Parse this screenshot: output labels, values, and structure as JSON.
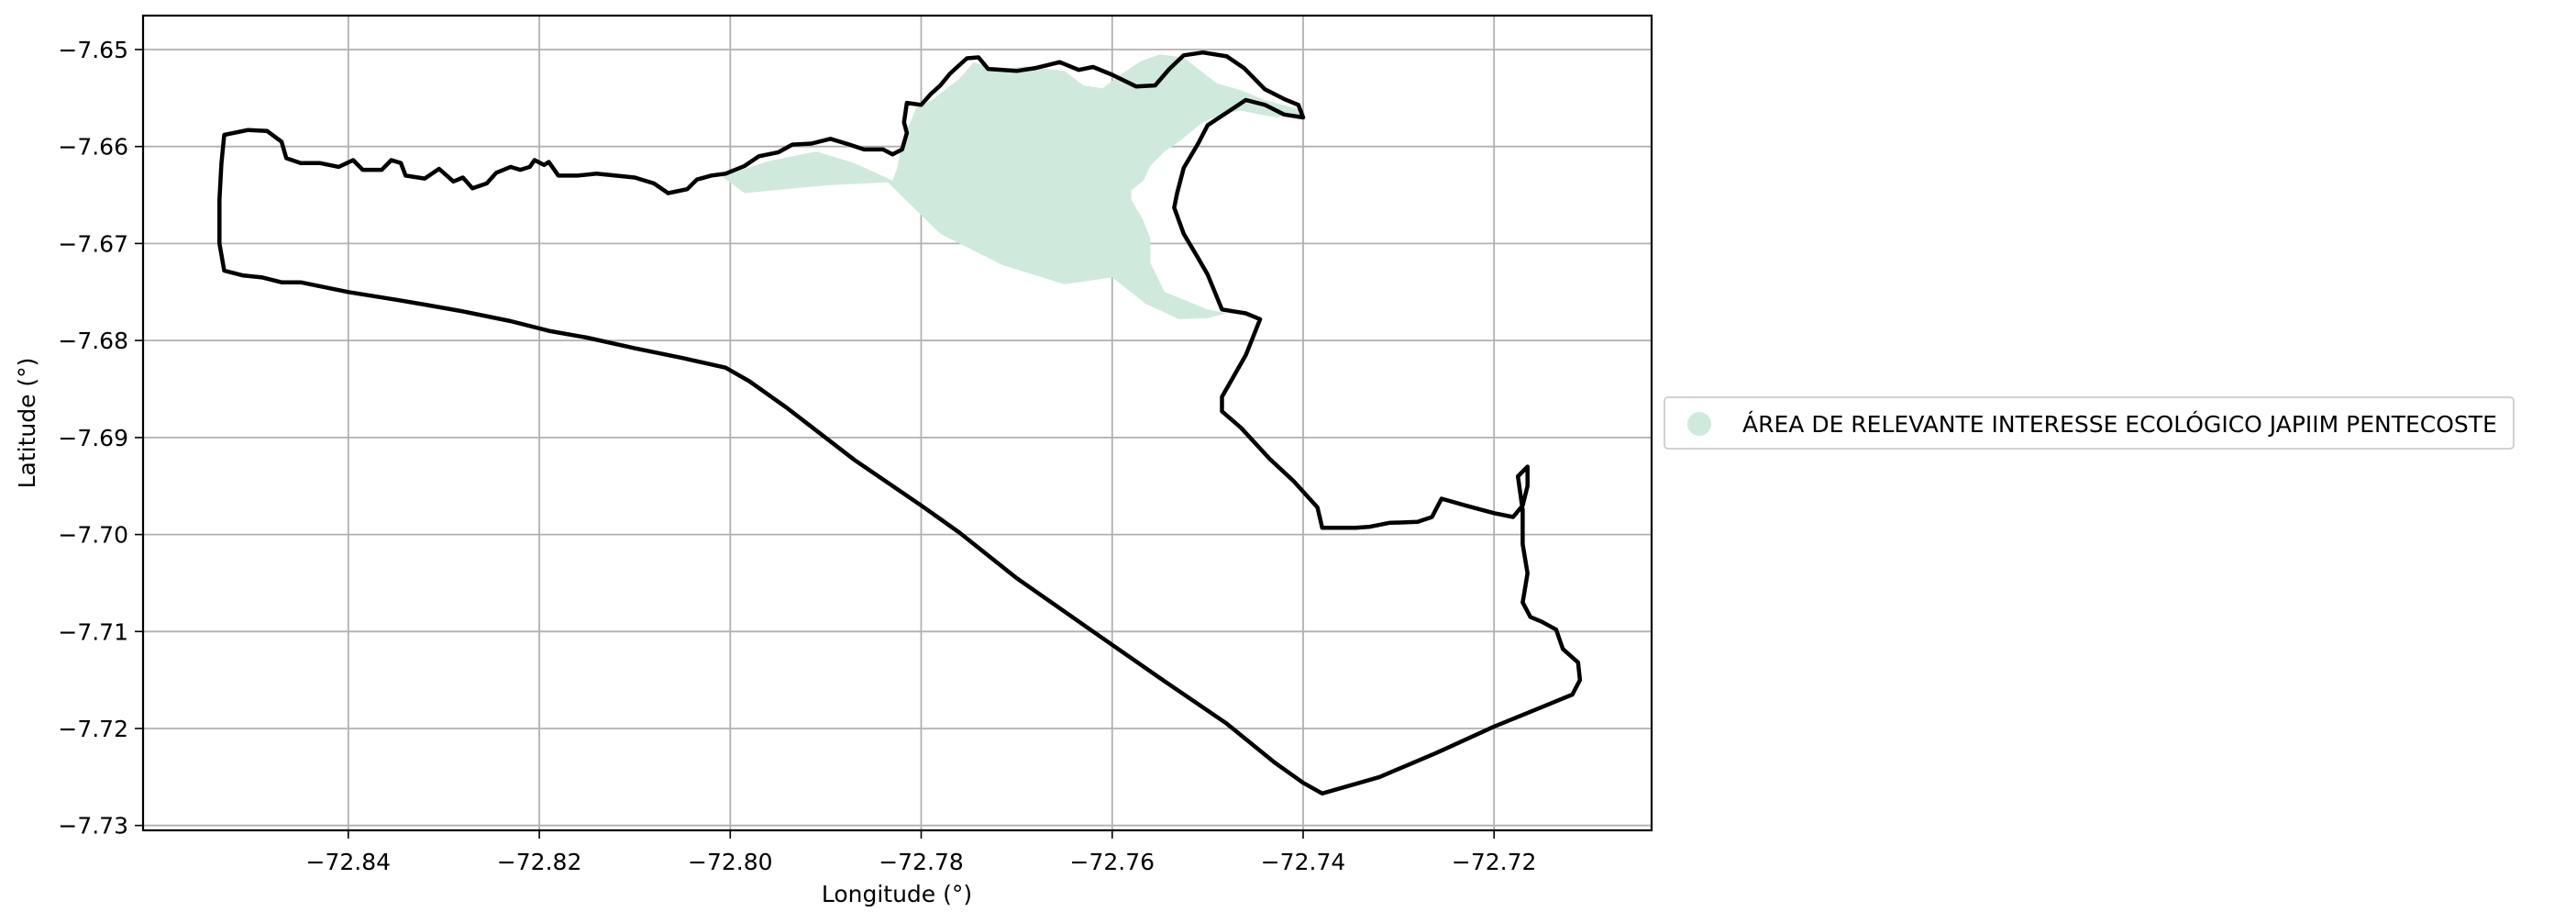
{
  "chart_data": {
    "type": "map",
    "title": "",
    "xlabel": "Longitude (°)",
    "ylabel": "Latitude (°)",
    "xlim": [
      -72.8615,
      -72.7035
    ],
    "ylim": [
      -7.7305,
      -7.6465
    ],
    "grid": true,
    "legend_position": "right",
    "x_ticks": [
      {
        "value": -72.84,
        "label": "−72.84"
      },
      {
        "value": -72.82,
        "label": "−72.82"
      },
      {
        "value": -72.8,
        "label": "−72.80"
      },
      {
        "value": -72.78,
        "label": "−72.78"
      },
      {
        "value": -72.76,
        "label": "−72.76"
      },
      {
        "value": -72.74,
        "label": "−72.74"
      },
      {
        "value": -72.72,
        "label": "−72.72"
      }
    ],
    "y_ticks": [
      {
        "value": -7.65,
        "label": "−7.65"
      },
      {
        "value": -7.66,
        "label": "−7.66"
      },
      {
        "value": -7.67,
        "label": "−7.67"
      },
      {
        "value": -7.68,
        "label": "−7.68"
      },
      {
        "value": -7.69,
        "label": "−7.69"
      },
      {
        "value": -7.7,
        "label": "−7.70"
      },
      {
        "value": -7.71,
        "label": "−7.71"
      },
      {
        "value": -7.72,
        "label": "−7.72"
      },
      {
        "value": -7.73,
        "label": "−7.73"
      }
    ],
    "layers": [
      {
        "name": "ÁREA DE RELEVANTE INTERESSE ECOLÓGICO JAPIIM PENTECOSTE",
        "type": "polygon",
        "fill": "#cfeadc",
        "in_legend": true,
        "coordinates": [
          [
            -72.801,
            -7.663
          ],
          [
            -72.7985,
            -7.6648
          ],
          [
            -72.79,
            -7.664
          ],
          [
            -72.7835,
            -7.6637
          ],
          [
            -72.778,
            -7.669
          ],
          [
            -72.7715,
            -7.6722
          ],
          [
            -72.765,
            -7.6742
          ],
          [
            -72.76,
            -7.6735
          ],
          [
            -72.7565,
            -7.6762
          ],
          [
            -72.753,
            -7.6778
          ],
          [
            -72.75,
            -7.6777
          ],
          [
            -72.748,
            -7.6772
          ],
          [
            -72.75,
            -7.6768
          ],
          [
            -72.7545,
            -7.675
          ],
          [
            -72.756,
            -7.672
          ],
          [
            -72.756,
            -7.6695
          ],
          [
            -72.7568,
            -7.6675
          ],
          [
            -72.758,
            -7.6655
          ],
          [
            -72.758,
            -7.6645
          ],
          [
            -72.7567,
            -7.6635
          ],
          [
            -72.756,
            -7.662
          ],
          [
            -72.7545,
            -7.6605
          ],
          [
            -72.753,
            -7.6595
          ],
          [
            -72.7505,
            -7.6575
          ],
          [
            -72.748,
            -7.6565
          ],
          [
            -72.7465,
            -7.6563
          ],
          [
            -72.744,
            -7.6568
          ],
          [
            -72.7425,
            -7.657
          ],
          [
            -72.742,
            -7.6565
          ],
          [
            -72.74,
            -7.6572
          ],
          [
            -72.7398,
            -7.6565
          ],
          [
            -72.741,
            -7.656
          ],
          [
            -72.744,
            -7.6552
          ],
          [
            -72.7465,
            -7.6542
          ],
          [
            -72.749,
            -7.6535
          ],
          [
            -72.751,
            -7.652
          ],
          [
            -72.7525,
            -7.6508
          ],
          [
            -72.755,
            -7.6505
          ],
          [
            -72.757,
            -7.6512
          ],
          [
            -72.759,
            -7.6525
          ],
          [
            -72.761,
            -7.654
          ],
          [
            -72.763,
            -7.6537
          ],
          [
            -72.765,
            -7.6522
          ],
          [
            -72.767,
            -7.652
          ],
          [
            -72.769,
            -7.6517
          ],
          [
            -72.771,
            -7.652
          ],
          [
            -72.773,
            -7.6518
          ],
          [
            -72.7745,
            -7.6513
          ],
          [
            -72.776,
            -7.653
          ],
          [
            -72.779,
            -7.6553
          ],
          [
            -72.7805,
            -7.656
          ],
          [
            -72.782,
            -7.6595
          ],
          [
            -72.7825,
            -7.6622
          ],
          [
            -72.783,
            -7.6635
          ],
          [
            -72.787,
            -7.6617
          ],
          [
            -72.791,
            -7.6605
          ],
          [
            -72.796,
            -7.6615
          ],
          [
            -72.8,
            -7.6628
          ]
        ]
      },
      {
        "name": "boundary",
        "type": "line",
        "stroke": "#000000",
        "in_legend": false,
        "coordinates": [
          [
            -72.853,
            -7.6588
          ],
          [
            -72.8505,
            -7.6583
          ],
          [
            -72.8485,
            -7.6584
          ],
          [
            -72.847,
            -7.6595
          ],
          [
            -72.8465,
            -7.6612
          ],
          [
            -72.845,
            -7.6617
          ],
          [
            -72.843,
            -7.6617
          ],
          [
            -72.841,
            -7.6621
          ],
          [
            -72.8395,
            -7.6614
          ],
          [
            -72.8385,
            -7.6624
          ],
          [
            -72.8365,
            -7.6624
          ],
          [
            -72.8355,
            -7.6614
          ],
          [
            -72.8345,
            -7.6617
          ],
          [
            -72.834,
            -7.663
          ],
          [
            -72.832,
            -7.6633
          ],
          [
            -72.8305,
            -7.6623
          ],
          [
            -72.829,
            -7.6636
          ],
          [
            -72.828,
            -7.6632
          ],
          [
            -72.827,
            -7.6643
          ],
          [
            -72.8255,
            -7.6638
          ],
          [
            -72.8245,
            -7.6627
          ],
          [
            -72.823,
            -7.6621
          ],
          [
            -72.822,
            -7.6624
          ],
          [
            -72.821,
            -7.6621
          ],
          [
            -72.8205,
            -7.6614
          ],
          [
            -72.8195,
            -7.6619
          ],
          [
            -72.819,
            -7.6616
          ],
          [
            -72.818,
            -7.663
          ],
          [
            -72.816,
            -7.663
          ],
          [
            -72.814,
            -7.6628
          ],
          [
            -72.812,
            -7.663
          ],
          [
            -72.81,
            -7.6632
          ],
          [
            -72.808,
            -7.6638
          ],
          [
            -72.8065,
            -7.6648
          ],
          [
            -72.8045,
            -7.6644
          ],
          [
            -72.8035,
            -7.6634
          ],
          [
            -72.802,
            -7.663
          ],
          [
            -72.8005,
            -7.6628
          ],
          [
            -72.7985,
            -7.662
          ],
          [
            -72.797,
            -7.661
          ],
          [
            -72.795,
            -7.6606
          ],
          [
            -72.7935,
            -7.6598
          ],
          [
            -72.7915,
            -7.6597
          ],
          [
            -72.7895,
            -7.6592
          ],
          [
            -72.7875,
            -7.6598
          ],
          [
            -72.786,
            -7.6603
          ],
          [
            -72.784,
            -7.6603
          ],
          [
            -72.783,
            -7.6608
          ],
          [
            -72.782,
            -7.6603
          ],
          [
            -72.7815,
            -7.6586
          ],
          [
            -72.7818,
            -7.6575
          ],
          [
            -72.7815,
            -7.6555
          ],
          [
            -72.78,
            -7.6557
          ],
          [
            -72.779,
            -7.6546
          ],
          [
            -72.778,
            -7.6537
          ],
          [
            -72.777,
            -7.6525
          ],
          [
            -72.776,
            -7.6516
          ],
          [
            -72.7752,
            -7.6509
          ],
          [
            -72.774,
            -7.6508
          ],
          [
            -72.773,
            -7.652
          ],
          [
            -72.77,
            -7.6522
          ],
          [
            -72.768,
            -7.6519
          ],
          [
            -72.7655,
            -7.6513
          ],
          [
            -72.7635,
            -7.6521
          ],
          [
            -72.762,
            -7.6518
          ],
          [
            -72.76,
            -7.6526
          ],
          [
            -72.7575,
            -7.6538
          ],
          [
            -72.7555,
            -7.6537
          ],
          [
            -72.754,
            -7.652
          ],
          [
            -72.7525,
            -7.6506
          ],
          [
            -72.7505,
            -7.6503
          ],
          [
            -72.748,
            -7.6507
          ],
          [
            -72.7462,
            -7.6519
          ],
          [
            -72.744,
            -7.6541
          ],
          [
            -72.742,
            -7.6551
          ],
          [
            -72.7405,
            -7.6557
          ],
          [
            -72.74,
            -7.657
          ],
          [
            -72.742,
            -7.6567
          ],
          [
            -72.744,
            -7.6557
          ],
          [
            -72.746,
            -7.6552
          ],
          [
            -72.748,
            -7.6565
          ],
          [
            -72.75,
            -7.6578
          ],
          [
            -72.751,
            -7.6597
          ],
          [
            -72.7525,
            -7.6622
          ],
          [
            -72.7532,
            -7.6648
          ],
          [
            -72.7535,
            -7.6663
          ],
          [
            -72.7525,
            -7.669
          ],
          [
            -72.751,
            -7.6715
          ],
          [
            -72.75,
            -7.6732
          ],
          [
            -72.7485,
            -7.6768
          ],
          [
            -72.746,
            -7.6772
          ],
          [
            -72.7445,
            -7.6778
          ],
          [
            -72.746,
            -7.6815
          ],
          [
            -72.7485,
            -7.6858
          ],
          [
            -72.7485,
            -7.6873
          ],
          [
            -72.7465,
            -7.689
          ],
          [
            -72.7435,
            -7.6922
          ],
          [
            -72.741,
            -7.6945
          ],
          [
            -72.7385,
            -7.6972
          ],
          [
            -72.738,
            -7.6993
          ],
          [
            -72.736,
            -7.6993
          ],
          [
            -72.7345,
            -7.6993
          ],
          [
            -72.733,
            -7.6992
          ],
          [
            -72.731,
            -7.6988
          ],
          [
            -72.728,
            -7.6987
          ],
          [
            -72.7265,
            -7.6982
          ],
          [
            -72.7255,
            -7.6963
          ],
          [
            -72.723,
            -7.697
          ],
          [
            -72.72,
            -7.6978
          ],
          [
            -72.718,
            -7.6982
          ],
          [
            -72.717,
            -7.697
          ],
          [
            -72.7165,
            -7.695
          ],
          [
            -72.7165,
            -7.693
          ],
          [
            -72.7175,
            -7.694
          ],
          [
            -72.717,
            -7.6975
          ],
          [
            -72.717,
            -7.701
          ],
          [
            -72.7165,
            -7.704
          ],
          [
            -72.717,
            -7.707
          ],
          [
            -72.7162,
            -7.7085
          ],
          [
            -72.715,
            -7.709
          ],
          [
            -72.7135,
            -7.7098
          ],
          [
            -72.7128,
            -7.7118
          ],
          [
            -72.7112,
            -7.7132
          ],
          [
            -72.711,
            -7.715
          ],
          [
            -72.7118,
            -7.7165
          ],
          [
            -72.715,
            -7.7178
          ],
          [
            -72.72,
            -7.7198
          ],
          [
            -72.726,
            -7.7225
          ],
          [
            -72.732,
            -7.725
          ],
          [
            -72.738,
            -7.7267
          ],
          [
            -72.74,
            -7.7256
          ],
          [
            -72.743,
            -7.7235
          ],
          [
            -72.748,
            -7.7195
          ],
          [
            -72.755,
            -7.7148
          ],
          [
            -72.762,
            -7.71
          ],
          [
            -72.77,
            -7.7045
          ],
          [
            -72.776,
            -7.6998
          ],
          [
            -72.78,
            -7.697
          ],
          [
            -72.787,
            -7.6923
          ],
          [
            -72.794,
            -7.687
          ],
          [
            -72.798,
            -7.6842
          ],
          [
            -72.8005,
            -7.6828
          ],
          [
            -72.805,
            -7.6818
          ],
          [
            -72.81,
            -7.6808
          ],
          [
            -72.815,
            -7.6797
          ],
          [
            -72.819,
            -7.679
          ],
          [
            -72.823,
            -7.678
          ],
          [
            -72.828,
            -7.677
          ],
          [
            -72.832,
            -7.6763
          ],
          [
            -72.835,
            -7.6758
          ],
          [
            -72.84,
            -7.675
          ],
          [
            -72.845,
            -7.674
          ],
          [
            -72.847,
            -7.674
          ],
          [
            -72.849,
            -7.6735
          ],
          [
            -72.851,
            -7.6733
          ],
          [
            -72.853,
            -7.6728
          ],
          [
            -72.8535,
            -7.67
          ],
          [
            -72.8535,
            -7.6655
          ],
          [
            -72.8533,
            -7.6618
          ],
          [
            -72.853,
            -7.6588
          ]
        ]
      }
    ]
  }
}
